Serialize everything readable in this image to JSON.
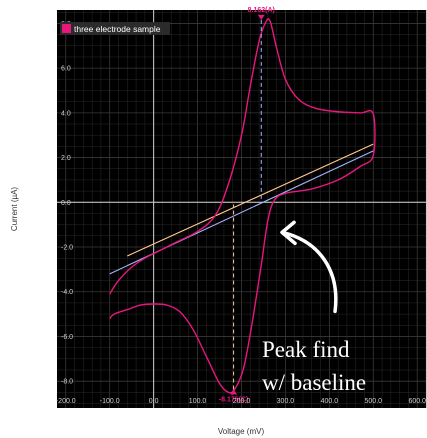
{
  "chart_data": {
    "type": "line",
    "title": "",
    "xlabel": "Voltage (mV)",
    "ylabel": "Current (µA)",
    "xlim": [
      -220,
      620
    ],
    "ylim": [
      -9.2,
      8.6
    ],
    "xticks": [
      -200,
      -100,
      0,
      100,
      200,
      300,
      400,
      500,
      600
    ],
    "yticks": [
      -8,
      -6,
      -4,
      -2,
      0,
      2,
      4,
      6,
      8
    ],
    "xtick_labels": [
      "-200.0",
      "-100.0",
      "0.0",
      "100.0",
      "200.0",
      "300.0",
      "400.0",
      "500.0",
      "600.0"
    ],
    "ytick_labels": [
      "-8.0",
      "-6.0",
      "-4.0",
      "-2.0",
      "0.0",
      "2.0",
      "4.0",
      "6.0",
      "8.0"
    ],
    "grid": true,
    "legend": {
      "placement": "top-left"
    },
    "background_color": "#000000",
    "grid_color": "#2a2a2a",
    "axis_zero_color": "#d0d0d0",
    "series": [
      {
        "name": "three electrode sample",
        "color": "#e8177d",
        "x": [
          -100,
          -80,
          -50,
          -20,
          10,
          50,
          100,
          140,
          170,
          200,
          220,
          240,
          255,
          265,
          280,
          300,
          330,
          370,
          420,
          470,
          500,
          500,
          470,
          420,
          360,
          300,
          275,
          260,
          245,
          225,
          205,
          185,
          170,
          150,
          120,
          90,
          60,
          30,
          0,
          -30,
          -60,
          -90,
          -100
        ],
        "y": [
          -4.1,
          -3.5,
          -2.9,
          -2.5,
          -2.2,
          -1.8,
          -1.3,
          -0.6,
          0.8,
          3.0,
          5.2,
          7.2,
          8.05,
          8.1,
          6.9,
          5.5,
          4.6,
          4.2,
          4.05,
          4.0,
          3.95,
          2.1,
          1.6,
          1.0,
          0.6,
          0.4,
          0.1,
          -0.8,
          -2.8,
          -5.3,
          -7.4,
          -8.35,
          -8.5,
          -8.1,
          -6.9,
          -5.7,
          -4.9,
          -4.6,
          -4.55,
          -4.6,
          -4.8,
          -5.0,
          -5.2
        ]
      }
    ],
    "baselines": [
      {
        "color": "#ffc890",
        "x": [
          -60,
          500
        ],
        "y": [
          -2.4,
          2.6
        ]
      },
      {
        "color": "#a7b3ff",
        "x": [
          -100,
          500
        ],
        "y": [
          -3.2,
          2.3
        ]
      }
    ],
    "peaks": [
      {
        "label": "8.162(A)",
        "x": 245,
        "y": 8.16,
        "baseline_y": 0.1,
        "color": "#a7b3ff",
        "label_position": "above"
      },
      {
        "label": "-8.175(C)",
        "x": 182,
        "y": -8.37,
        "baseline_y": -0.1,
        "color": "#ffc890",
        "label_position": "below"
      }
    ],
    "annotation": {
      "text_lines": [
        "Peak find",
        "w/ baseline"
      ],
      "arrow_to": {
        "x": 265,
        "y": -1.3
      }
    }
  }
}
